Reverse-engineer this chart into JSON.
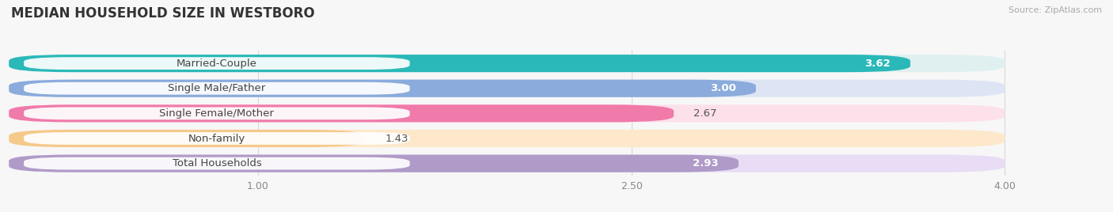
{
  "title": "MEDIAN HOUSEHOLD SIZE IN WESTBORO",
  "source": "Source: ZipAtlas.com",
  "categories": [
    "Married-Couple",
    "Single Male/Father",
    "Single Female/Mother",
    "Non-family",
    "Total Households"
  ],
  "values": [
    3.62,
    3.0,
    2.67,
    1.43,
    2.93
  ],
  "bar_colors": [
    "#2ab8b8",
    "#8aabdc",
    "#f07aaa",
    "#f5c98a",
    "#b09ac8"
  ],
  "bar_bg_colors": [
    "#e0f0f0",
    "#dde5f5",
    "#fce0ea",
    "#fde8cb",
    "#e8ddf5"
  ],
  "label_bg": "#ffffff",
  "xlim_start": 0,
  "xlim_end": 4.3,
  "xaxis_max": 4.0,
  "xticks": [
    1.0,
    2.5,
    4.0
  ],
  "label_fontsize": 9.5,
  "value_fontsize": 9.5,
  "title_fontsize": 12,
  "bg_color": "#f7f7f7"
}
